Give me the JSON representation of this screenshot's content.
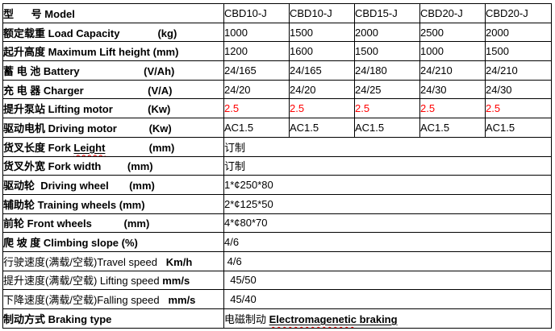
{
  "colors": {
    "background": "#ffffff",
    "border": "#000000",
    "text": "#000000",
    "red_value": "#ff0000",
    "spellcheck": "#ff0000"
  },
  "table": {
    "header": {
      "name": "model",
      "label": [
        [
          "型      号 ",
          "b"
        ],
        [
          "Model",
          "b"
        ]
      ],
      "models": [
        "CBD10-J",
        "CBD10-J",
        "CBD15-J",
        "CBD20-J",
        "CBD20-J"
      ]
    },
    "rows": [
      {
        "name": "load-capacity",
        "label": [
          [
            "额定载重 ",
            "b"
          ],
          [
            "Load Capacity",
            "b"
          ],
          [
            "             ",
            "r"
          ],
          [
            "(kg)",
            "b"
          ]
        ],
        "values": [
          "1000",
          "1500",
          "2000",
          "2500",
          "2000"
        ]
      },
      {
        "name": "max-lift-height",
        "label": [
          [
            "起升高度 ",
            "b"
          ],
          [
            "Maximum Lift height (mm)",
            "b"
          ]
        ],
        "values": [
          "1200",
          "1600",
          "1500",
          "1000",
          "1500"
        ]
      },
      {
        "name": "battery",
        "label": [
          [
            "蓄 电 池 ",
            "b"
          ],
          [
            "Battery",
            "b"
          ],
          [
            "                      ",
            "r"
          ],
          [
            "(V/Ah)",
            "b"
          ]
        ],
        "values": [
          "24/165",
          "24/165",
          "24/180",
          "24/210",
          "24/210"
        ]
      },
      {
        "name": "charger",
        "label": [
          [
            "充 电 器 ",
            "b"
          ],
          [
            "Charger",
            "b"
          ],
          [
            "                      ",
            "r"
          ],
          [
            "(V/A)",
            "b"
          ]
        ],
        "values": [
          "24/20",
          "24/20",
          "24/25",
          "24/30",
          "24/30"
        ]
      },
      {
        "name": "lifting-motor",
        "label": [
          [
            "提升泵站 ",
            "b"
          ],
          [
            "Lifting motor",
            "b"
          ],
          [
            "            ",
            "r"
          ],
          [
            "(Kw)",
            "b"
          ]
        ],
        "values": [
          "2.5",
          "2.5",
          "2.5",
          "2.5",
          "2.5"
        ],
        "red": true
      },
      {
        "name": "driving-motor",
        "label": [
          [
            "驱动电机 ",
            "b"
          ],
          [
            "Driving motor",
            "b"
          ],
          [
            "           ",
            "r"
          ],
          [
            "(Kw)",
            "b"
          ]
        ],
        "values": [
          "AC1.5",
          "AC1.5",
          "AC1.5",
          "AC1.5",
          "AC1.5"
        ]
      },
      {
        "name": "fork-length",
        "label": [
          [
            "货叉长度 ",
            "b"
          ],
          [
            "Fork ",
            "b"
          ],
          [
            "Leight",
            "buw"
          ],
          [
            "               ",
            "r"
          ],
          [
            "(mm)",
            "b"
          ]
        ],
        "merged": [
          [
            "订制",
            "r"
          ]
        ]
      },
      {
        "name": "fork-width",
        "label": [
          [
            "货叉外宽 ",
            "b"
          ],
          [
            "Fork width",
            "b"
          ],
          [
            "         ",
            "r"
          ],
          [
            "(mm)",
            "b"
          ]
        ],
        "merged": [
          [
            "订制",
            "r"
          ]
        ]
      },
      {
        "name": "driving-wheel",
        "label": [
          [
            "驱动轮  ",
            "b"
          ],
          [
            "Driving wheel",
            "b"
          ],
          [
            "       ",
            "r"
          ],
          [
            "(mm)",
            "b"
          ]
        ],
        "merged": [
          [
            "1*¢250*80",
            "r"
          ]
        ]
      },
      {
        "name": "training-wheels",
        "label": [
          [
            "辅助轮 ",
            "b"
          ],
          [
            "Training wheels (mm)",
            "b"
          ]
        ],
        "merged": [
          [
            "2*¢125*50",
            "r"
          ]
        ]
      },
      {
        "name": "front-wheels",
        "label": [
          [
            "前轮 ",
            "b"
          ],
          [
            "Front wheels",
            "b"
          ],
          [
            "           ",
            "r"
          ],
          [
            "(mm)",
            "b"
          ]
        ],
        "merged": [
          [
            "4*¢80*70",
            "r"
          ]
        ]
      },
      {
        "name": "climbing-slope",
        "label": [
          [
            "爬 坡 度 ",
            "b"
          ],
          [
            "Climbing slope (%)",
            "b"
          ]
        ],
        "merged": [
          [
            "4/6",
            "r"
          ]
        ]
      },
      {
        "name": "travel-speed",
        "label": [
          [
            "行驶速度(满载/空载)",
            "r"
          ],
          [
            "Travel speed",
            "r"
          ],
          [
            "   ",
            "r"
          ],
          [
            "Km/h",
            "b"
          ]
        ],
        "merged": [
          [
            " 4/6",
            "r"
          ]
        ]
      },
      {
        "name": "lifting-speed",
        "label": [
          [
            "提升速度(满载/空载) ",
            "r"
          ],
          [
            "Lifting speed ",
            "r"
          ],
          [
            "mm/s",
            "b"
          ]
        ],
        "merged": [
          [
            "  45/50",
            "r"
          ]
        ]
      },
      {
        "name": "falling-speed",
        "label": [
          [
            "下降速度(满载/空载)",
            "r"
          ],
          [
            "Falling speed",
            "r"
          ],
          [
            "   ",
            "r"
          ],
          [
            "mm/s",
            "b"
          ]
        ],
        "merged": [
          [
            "  45/40",
            "r"
          ]
        ]
      },
      {
        "name": "braking-type",
        "label": [
          [
            "制动方式 ",
            "b"
          ],
          [
            "Braking type",
            "b"
          ]
        ],
        "merged": [
          [
            "电磁制动 ",
            "r"
          ],
          [
            "Electromagenetic",
            "buw"
          ],
          [
            " braking",
            "bu"
          ]
        ]
      }
    ]
  }
}
